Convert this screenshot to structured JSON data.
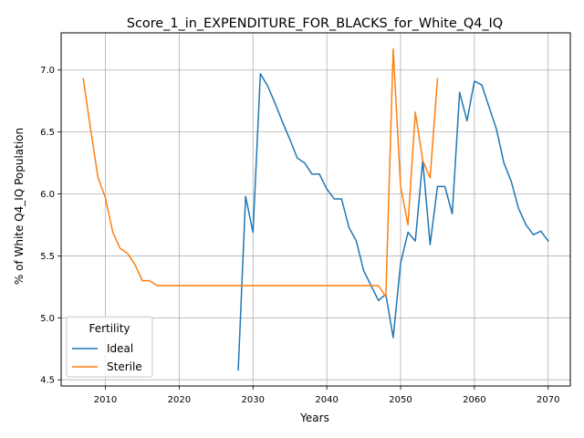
{
  "chart_data": {
    "type": "line",
    "title": "Score_1_in_EXPENDITURE_FOR_BLACKS_for_White_Q4_IQ",
    "xlabel": "Years",
    "ylabel": "% of White Q4_IQ Population",
    "xlim": [
      2004,
      2073
    ],
    "ylim": [
      4.45,
      7.3
    ],
    "xticks": [
      2010,
      2020,
      2030,
      2040,
      2050,
      2060,
      2070
    ],
    "yticks": [
      4.5,
      5.0,
      5.5,
      6.0,
      6.5,
      7.0
    ],
    "ytick_labels": [
      "4.5",
      "5.0",
      "5.5",
      "6.0",
      "6.5",
      "7.0"
    ],
    "grid": true,
    "legend": {
      "title": "Fertility",
      "placement": "lower-left"
    },
    "series": [
      {
        "name": "Ideal",
        "color": "#1f77b4",
        "x": [
          2028,
          2029,
          2030,
          2031,
          2032,
          2033,
          2034,
          2035,
          2036,
          2037,
          2038,
          2039,
          2040,
          2041,
          2042,
          2043,
          2044,
          2045,
          2046,
          2047,
          2048,
          2049,
          2050,
          2051,
          2052,
          2053,
          2054,
          2055,
          2056,
          2057,
          2058,
          2059,
          2060,
          2061,
          2062,
          2063,
          2064,
          2065,
          2066,
          2067,
          2068,
          2069,
          2070
        ],
        "values": [
          4.58,
          5.98,
          5.69,
          6.97,
          6.87,
          6.73,
          6.58,
          6.44,
          6.29,
          6.25,
          6.16,
          6.16,
          6.04,
          5.96,
          5.96,
          5.73,
          5.62,
          5.38,
          5.26,
          5.14,
          5.19,
          4.84,
          5.44,
          5.69,
          5.62,
          6.27,
          5.59,
          6.06,
          6.06,
          5.84,
          6.82,
          6.59,
          6.91,
          6.88,
          6.7,
          6.52,
          6.25,
          6.1,
          5.88,
          5.75,
          5.67,
          5.7,
          5.62
        ]
      },
      {
        "name": "Sterile",
        "color": "#ff7f0e",
        "x": [
          2007,
          2008,
          2009,
          2010,
          2011,
          2012,
          2013,
          2014,
          2015,
          2016,
          2017,
          2018,
          2019,
          2020,
          2021,
          2022,
          2023,
          2024,
          2025,
          2026,
          2027,
          2028,
          2029,
          2030,
          2031,
          2032,
          2033,
          2034,
          2035,
          2036,
          2037,
          2038,
          2039,
          2040,
          2041,
          2042,
          2043,
          2044,
          2045,
          2046,
          2047,
          2048,
          2049,
          2050,
          2051,
          2052,
          2053,
          2054,
          2055
        ],
        "values": [
          6.93,
          6.52,
          6.13,
          5.97,
          5.69,
          5.56,
          5.52,
          5.43,
          5.3,
          5.3,
          5.26,
          5.26,
          5.26,
          5.26,
          5.26,
          5.26,
          5.26,
          5.26,
          5.26,
          5.26,
          5.26,
          5.26,
          5.26,
          5.26,
          5.26,
          5.26,
          5.26,
          5.26,
          5.26,
          5.26,
          5.26,
          5.26,
          5.26,
          5.26,
          5.26,
          5.26,
          5.26,
          5.26,
          5.26,
          5.26,
          5.26,
          5.17,
          7.17,
          6.06,
          5.75,
          6.66,
          6.27,
          6.13,
          6.93
        ]
      }
    ]
  }
}
